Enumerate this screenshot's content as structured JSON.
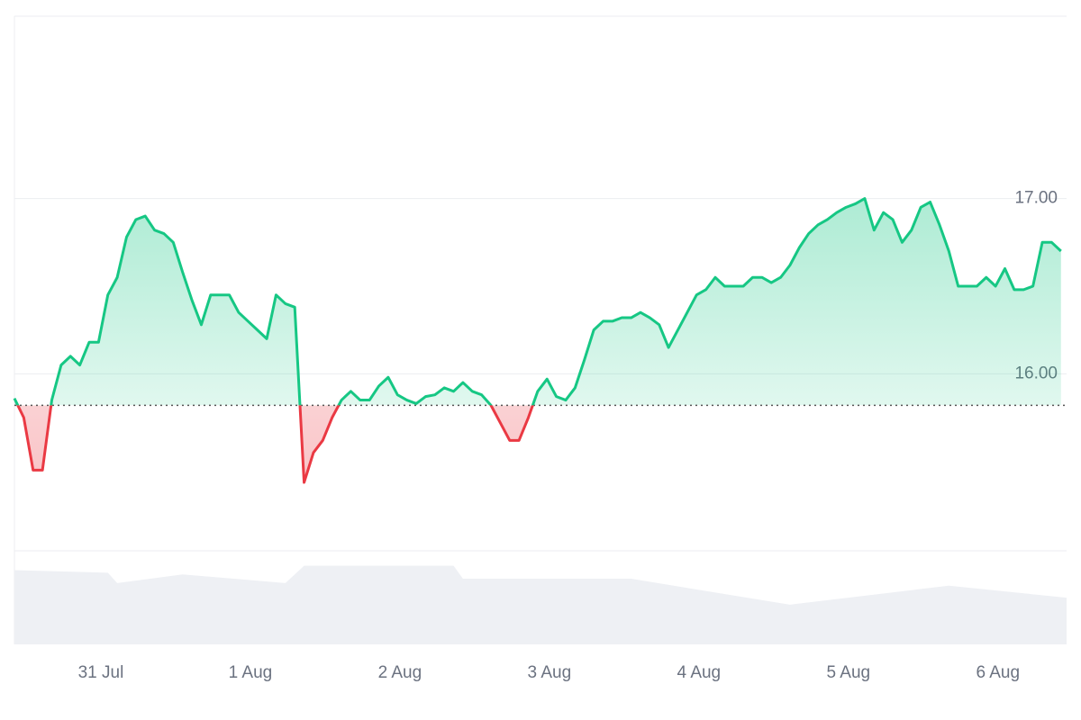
{
  "chart_data": {
    "type": "line",
    "values": [
      15.86,
      15.75,
      15.45,
      15.45,
      15.85,
      16.05,
      16.1,
      16.05,
      16.18,
      16.18,
      16.45,
      16.55,
      16.78,
      16.88,
      16.9,
      16.82,
      16.8,
      16.75,
      16.58,
      16.42,
      16.28,
      16.45,
      16.45,
      16.45,
      16.35,
      16.3,
      16.25,
      16.2,
      16.45,
      16.4,
      16.38,
      15.38,
      15.55,
      15.62,
      15.75,
      15.85,
      15.9,
      15.85,
      15.85,
      15.93,
      15.98,
      15.88,
      15.85,
      15.83,
      15.87,
      15.88,
      15.92,
      15.9,
      15.95,
      15.9,
      15.88,
      15.82,
      15.72,
      15.62,
      15.62,
      15.75,
      15.9,
      15.97,
      15.87,
      15.85,
      15.92,
      16.08,
      16.25,
      16.3,
      16.3,
      16.32,
      16.32,
      16.35,
      16.32,
      16.28,
      16.15,
      16.25,
      16.35,
      16.45,
      16.48,
      16.55,
      16.5,
      16.5,
      16.5,
      16.55,
      16.55,
      16.52,
      16.55,
      16.62,
      16.72,
      16.8,
      16.85,
      16.88,
      16.92,
      16.95,
      16.97,
      17.0,
      16.82,
      16.92,
      16.88,
      16.75,
      16.82,
      16.95,
      16.98,
      16.85,
      16.7,
      16.5,
      16.5,
      16.5,
      16.55,
      16.5,
      16.6,
      16.48,
      16.48,
      16.5,
      16.75,
      16.75,
      16.7
    ],
    "baseline": 15.82,
    "up_color": "#16c784",
    "down_color": "#ea3943",
    "xlim": [
      0,
      112.6
    ],
    "xticks": [
      {
        "value": 9.25,
        "label": "31 Jul"
      },
      {
        "value": 25.25,
        "label": "1 Aug"
      },
      {
        "value": 41.25,
        "label": "2 Aug"
      },
      {
        "value": 57.25,
        "label": "3 Aug"
      },
      {
        "value": 73.25,
        "label": "4 Aug"
      },
      {
        "value": 89.25,
        "label": "5 Aug"
      },
      {
        "value": 105.25,
        "label": "6 Aug"
      }
    ],
    "ylim": [
      14.99,
      18.02
    ],
    "yticks": [
      {
        "value": 16,
        "label": "16.00"
      },
      {
        "value": 17,
        "label": "17.00"
      }
    ],
    "grid": true,
    "volume": {
      "x": [
        0,
        10,
        11,
        18,
        29,
        31,
        47,
        48,
        66,
        83,
        100,
        112.6
      ],
      "values": [
        86,
        83,
        71,
        81,
        71,
        91,
        91,
        76,
        76,
        46,
        68,
        54
      ],
      "lim": [
        0,
        100
      ],
      "color": "#eef0f4"
    }
  }
}
